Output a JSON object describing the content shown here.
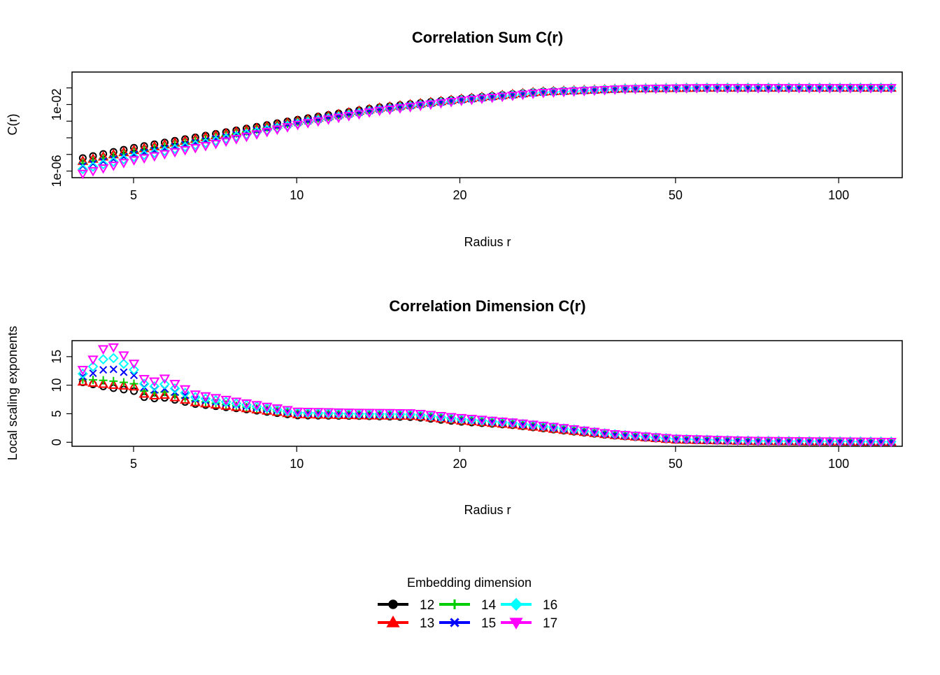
{
  "chart_data": [
    {
      "type": "scatter",
      "title": "Correlation Sum C(r)",
      "xlabel": "Radius r",
      "ylabel": "C(r)",
      "x_scale": "log",
      "y_scale": "log",
      "xlim": [
        3.85,
        131
      ],
      "ylim": [
        4e-07,
        0.9
      ],
      "x_ticks": [
        5,
        10,
        20,
        50,
        100
      ],
      "y_ticks": [
        1e-06,
        0.01
      ],
      "y_tick_labels": [
        "1e-06",
        "1e-02"
      ],
      "x_range_points": [
        4.03,
        125
      ],
      "n_points": 80,
      "series": [
        {
          "name": "12",
          "color": "#000000",
          "marker": "circle",
          "x": [
            4.03,
            5,
            7,
            10,
            14,
            20,
            28,
            40,
            55,
            80,
            125
          ],
          "y": [
            6e-06,
            2.5e-05,
            0.00016,
            0.0012,
            0.0065,
            0.022,
            0.06,
            0.09,
            0.1,
            0.1,
            0.1
          ]
        },
        {
          "name": "13",
          "color": "#ff0000",
          "marker": "triangle-up",
          "x": [
            4.03,
            5,
            7,
            10,
            14,
            20,
            28,
            40,
            55,
            80,
            125
          ],
          "y": [
            4e-06,
            1.8e-05,
            0.00013,
            0.001,
            0.006,
            0.021,
            0.058,
            0.09,
            0.1,
            0.1,
            0.1
          ]
        },
        {
          "name": "14",
          "color": "#00cd00",
          "marker": "plus",
          "x": [
            4.03,
            5,
            7,
            10,
            14,
            20,
            28,
            40,
            55,
            80,
            125
          ],
          "y": [
            3e-06,
            1.4e-05,
            0.0001,
            0.0009,
            0.0055,
            0.02,
            0.056,
            0.089,
            0.1,
            0.1,
            0.1
          ]
        },
        {
          "name": "15",
          "color": "#0000ff",
          "marker": "cross",
          "x": [
            4.03,
            5,
            7,
            10,
            14,
            20,
            28,
            40,
            55,
            80,
            125
          ],
          "y": [
            2e-06,
            1e-05,
            8e-05,
            0.0008,
            0.005,
            0.019,
            0.054,
            0.088,
            0.1,
            0.1,
            0.1
          ]
        },
        {
          "name": "16",
          "color": "#00ffff",
          "marker": "diamond",
          "x": [
            4.03,
            5,
            7,
            10,
            14,
            20,
            28,
            40,
            55,
            80,
            125
          ],
          "y": [
            1.3e-06,
            7e-06,
            6e-05,
            0.0007,
            0.0045,
            0.018,
            0.052,
            0.087,
            0.1,
            0.1,
            0.1
          ]
        },
        {
          "name": "17",
          "color": "#ff00ff",
          "marker": "triangle-down",
          "x": [
            4.03,
            5,
            7,
            10,
            14,
            20,
            28,
            40,
            55,
            80,
            125
          ],
          "y": [
            7e-07,
            4.5e-06,
            4e-05,
            0.0006,
            0.004,
            0.017,
            0.05,
            0.086,
            0.1,
            0.1,
            0.1
          ]
        }
      ]
    },
    {
      "type": "scatter",
      "title": "Correlation Dimension C(r)",
      "xlabel": "Radius r",
      "ylabel": "Local scaling exponents",
      "x_scale": "log",
      "y_scale": "linear",
      "xlim": [
        3.85,
        131
      ],
      "ylim": [
        -0.7,
        17.8
      ],
      "x_ticks": [
        5,
        10,
        20,
        50,
        100
      ],
      "y_ticks": [
        0,
        5,
        10,
        15
      ],
      "x_range_points": [
        4.03,
        125
      ],
      "n_points": 80,
      "series": [
        {
          "name": "12",
          "color": "#000000",
          "marker": "circle",
          "x": [
            4.03,
            4.5,
            5,
            5.3,
            5.7,
            6.5,
            8,
            10,
            13,
            16.5,
            20,
            25,
            30,
            38,
            50,
            70,
            125
          ],
          "y": [
            10.5,
            9.6,
            9.0,
            7.6,
            7.8,
            6.7,
            5.8,
            4.7,
            4.6,
            4.4,
            3.6,
            3.0,
            2.2,
            1.2,
            0.4,
            0.15,
            0.05
          ]
        },
        {
          "name": "13",
          "color": "#ff0000",
          "marker": "triangle-up",
          "x": [
            4.03,
            4.5,
            5,
            5.3,
            5.7,
            6.5,
            8,
            10,
            13,
            16.5,
            20,
            25,
            30,
            38,
            50,
            70,
            125
          ],
          "y": [
            10.6,
            10.1,
            9.8,
            8.1,
            8.3,
            7.0,
            6.0,
            4.9,
            4.7,
            4.6,
            3.8,
            3.1,
            2.3,
            1.3,
            0.45,
            0.18,
            0.06
          ]
        },
        {
          "name": "14",
          "color": "#00cd00",
          "marker": "plus",
          "x": [
            4.03,
            4.5,
            5,
            5.3,
            5.7,
            6.5,
            8,
            10,
            13,
            16.5,
            20,
            25,
            30,
            38,
            50,
            70,
            125
          ],
          "y": [
            11.0,
            10.8,
            10.3,
            8.6,
            8.8,
            7.3,
            6.2,
            5.0,
            4.8,
            4.7,
            3.9,
            3.2,
            2.4,
            1.35,
            0.5,
            0.2,
            0.07
          ]
        },
        {
          "name": "15",
          "color": "#0000ff",
          "marker": "cross",
          "x": [
            4.03,
            4.5,
            5,
            5.3,
            5.7,
            6.5,
            8,
            10,
            13,
            16.5,
            20,
            25,
            30,
            38,
            50,
            70,
            125
          ],
          "y": [
            11.5,
            13.0,
            11.8,
            9.0,
            9.4,
            7.6,
            6.4,
            5.1,
            4.9,
            4.8,
            4.0,
            3.3,
            2.5,
            1.4,
            0.55,
            0.22,
            0.08
          ]
        },
        {
          "name": "16",
          "color": "#00ffff",
          "marker": "diamond",
          "x": [
            4.03,
            4.5,
            5,
            5.3,
            5.7,
            6.5,
            8,
            10,
            13,
            16.5,
            20,
            25,
            30,
            38,
            50,
            70,
            125
          ],
          "y": [
            12.0,
            15.2,
            12.8,
            9.5,
            10.2,
            7.9,
            6.6,
            5.2,
            5.0,
            4.9,
            4.1,
            3.4,
            2.6,
            1.45,
            0.6,
            0.25,
            0.09
          ]
        },
        {
          "name": "17",
          "color": "#ff00ff",
          "marker": "triangle-down",
          "x": [
            4.03,
            4.5,
            5,
            5.3,
            5.7,
            6.5,
            8,
            10,
            13,
            16.5,
            20,
            25,
            30,
            38,
            50,
            70,
            125
          ],
          "y": [
            12.7,
            17.3,
            13.9,
            10.3,
            11.2,
            8.4,
            6.9,
            5.4,
            5.2,
            5.1,
            4.3,
            3.5,
            2.7,
            1.5,
            0.65,
            0.28,
            0.1
          ]
        }
      ]
    }
  ],
  "legend": {
    "title": "Embedding dimension",
    "placement": "bottom-center",
    "entries": [
      {
        "label": "12",
        "color": "#000000",
        "marker": "circle"
      },
      {
        "label": "13",
        "color": "#ff0000",
        "marker": "triangle-up"
      },
      {
        "label": "14",
        "color": "#00cd00",
        "marker": "plus"
      },
      {
        "label": "15",
        "color": "#0000ff",
        "marker": "cross"
      },
      {
        "label": "16",
        "color": "#00ffff",
        "marker": "diamond"
      },
      {
        "label": "17",
        "color": "#ff00ff",
        "marker": "triangle-down"
      }
    ]
  }
}
